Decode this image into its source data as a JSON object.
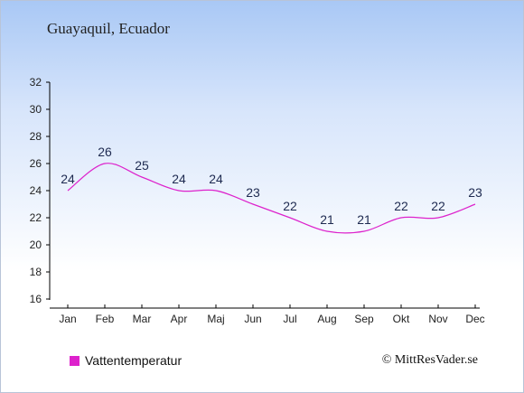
{
  "header": {
    "location": "Guayaquil, Ecuador"
  },
  "legend": {
    "label": "Vattentemperatur"
  },
  "credit": "© MittResVader.se",
  "colors": {
    "series": "#dd22cc",
    "axis": "#000000",
    "labels": "#1e2a50"
  },
  "chart_data": {
    "type": "line",
    "title": "",
    "xlabel": "",
    "ylabel": "",
    "categories": [
      "Jan",
      "Feb",
      "Mar",
      "Apr",
      "Maj",
      "Jun",
      "Jul",
      "Aug",
      "Sep",
      "Okt",
      "Nov",
      "Dec"
    ],
    "series": [
      {
        "name": "Vattentemperatur",
        "values": [
          24,
          26,
          25,
          24,
          24,
          23,
          22,
          21,
          21,
          22,
          22,
          23
        ]
      }
    ],
    "ylim": [
      16,
      32
    ],
    "yticks": [
      16,
      18,
      20,
      22,
      24,
      26,
      28,
      30,
      32
    ],
    "grid": false,
    "legend_position": "bottom-left"
  }
}
